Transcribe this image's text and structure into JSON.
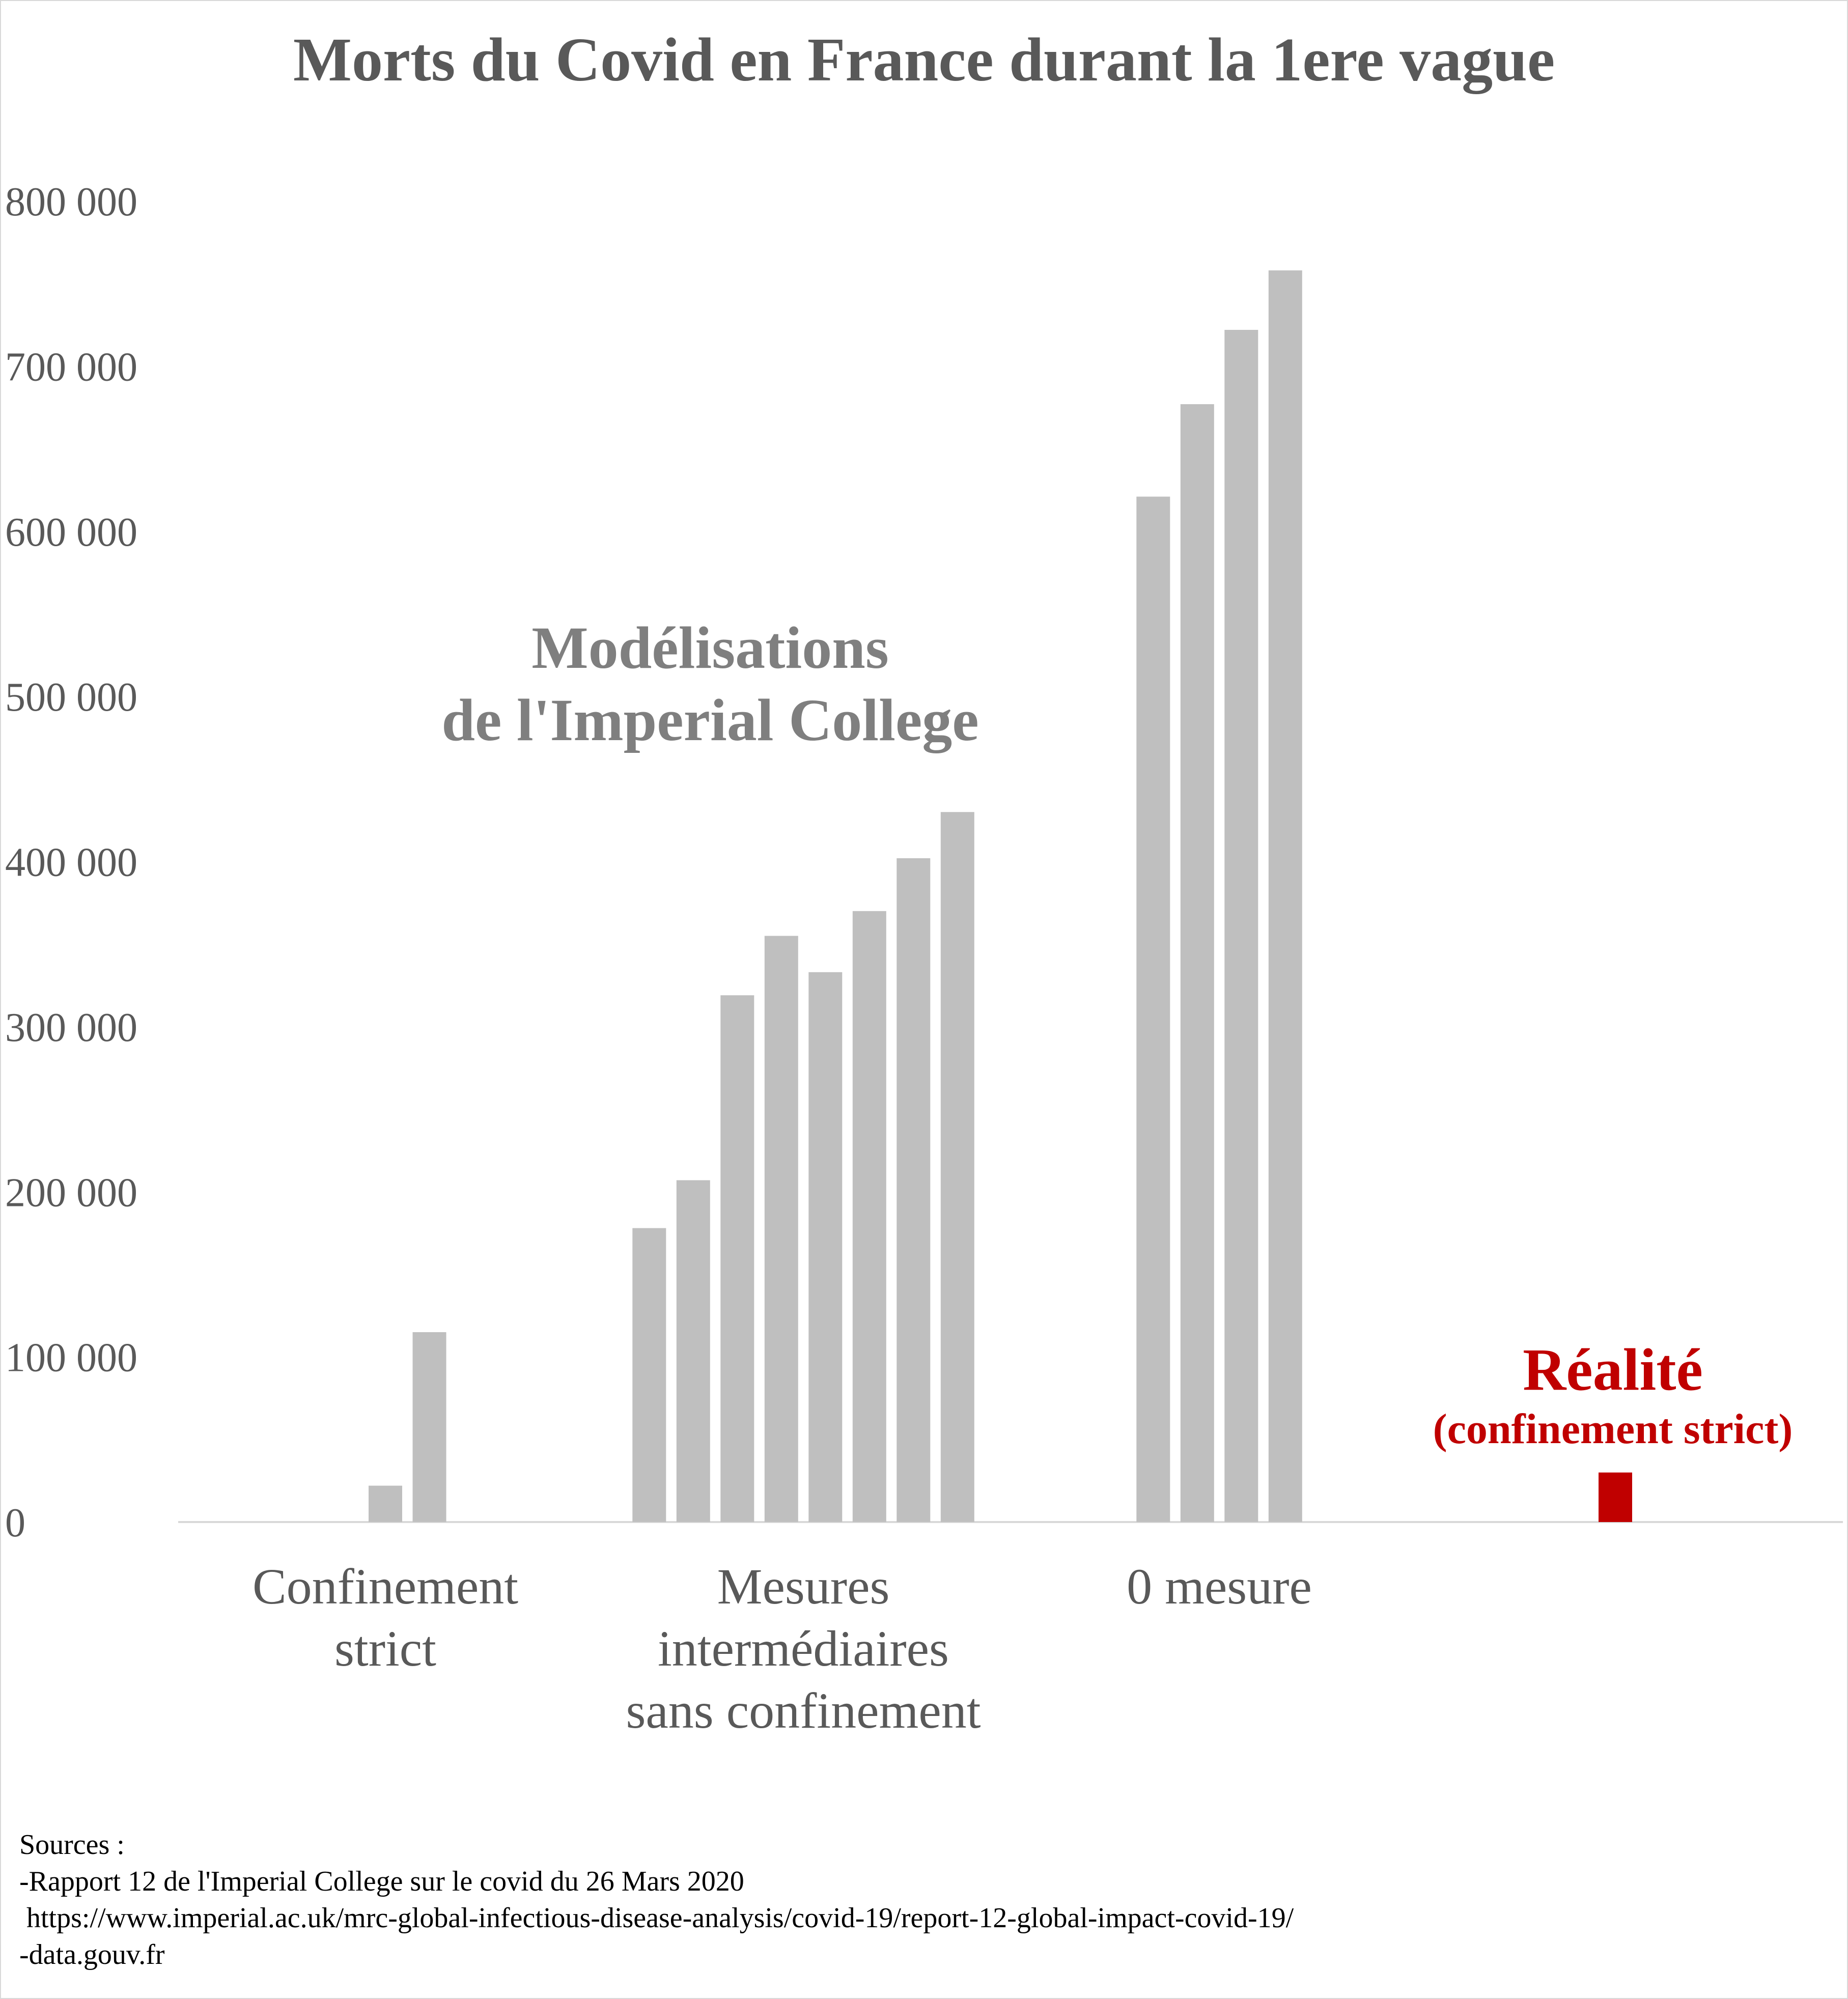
{
  "chart_data": {
    "type": "bar",
    "title": "Morts du Covid en France durant la 1ere vague",
    "ylim": [
      0,
      800000
    ],
    "yticks": [
      0,
      100000,
      200000,
      300000,
      400000,
      500000,
      600000,
      700000,
      800000
    ],
    "ytick_labels": [
      "0",
      "100 000",
      "200 000",
      "300 000",
      "400 000",
      "500 000",
      "600 000",
      "700 000",
      "800 000"
    ],
    "grid": false,
    "categories": [
      {
        "label_lines": [
          "Confinement",
          "strict"
        ],
        "values": [
          22000,
          115000
        ]
      },
      {
        "label_lines": [
          "Mesures",
          "intermédiaires",
          "sans confinement"
        ],
        "values": [
          178000,
          207000,
          319000,
          355000,
          333000,
          370000,
          402000,
          430000
        ]
      },
      {
        "label_lines": [
          "0 mesure"
        ],
        "values": [
          621000,
          677000,
          722000,
          758000
        ]
      },
      {
        "label_lines": [],
        "values": [
          30000
        ]
      }
    ],
    "colors": {
      "model": "#bfbfbf",
      "reality": "#c00000",
      "text": "#595959",
      "axis": "#d9d9d9"
    },
    "annotations": {
      "model_lines": [
        "Modélisations",
        "de l'Imperial College"
      ],
      "reality_line1": "Réalité",
      "reality_line2": "(confinement strict)"
    }
  },
  "sources": {
    "heading": "Sources :",
    "line1": "-Rapport 12 de l'Imperial College sur le covid du 26 Mars 2020",
    "line2": " https://www.imperial.ac.uk/mrc-global-infectious-disease-analysis/covid-19/report-12-global-impact-covid-19/",
    "line3": "-data.gouv.fr"
  }
}
